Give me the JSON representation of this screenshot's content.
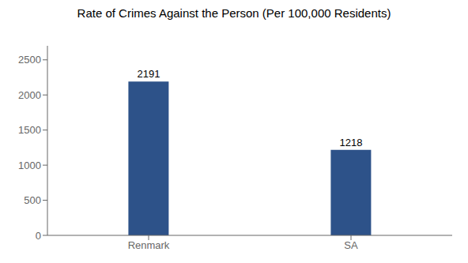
{
  "chart_data": {
    "type": "bar",
    "title": "Rate of Crimes Against the Person (Per 100,000 Residents)",
    "categories": [
      "Renmark",
      "SA"
    ],
    "values": [
      2191,
      1218
    ],
    "color": "#2d5289",
    "ylim": [
      0,
      2700
    ],
    "yticks": [
      0,
      500,
      1000,
      1500,
      2000,
      2500
    ],
    "grid": false,
    "data_labels": true
  }
}
